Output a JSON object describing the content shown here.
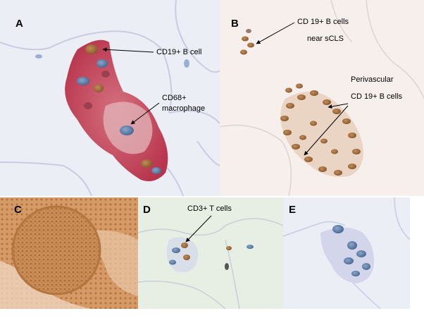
{
  "figure": {
    "panels": [
      {
        "letter": "A",
        "annotations": [
          "CD19+ B cell",
          "CD68+",
          "macrophage"
        ]
      },
      {
        "letter": "B",
        "annotations": [
          "CD 19+ B cells",
          "near sCLS",
          "Perivascular",
          "CD 19+ B  cells"
        ]
      },
      {
        "letter": "C",
        "annotations": []
      },
      {
        "letter": "D",
        "annotations": [
          "CD3+ T cells"
        ]
      },
      {
        "letter": "E",
        "annotations": []
      }
    ]
  }
}
